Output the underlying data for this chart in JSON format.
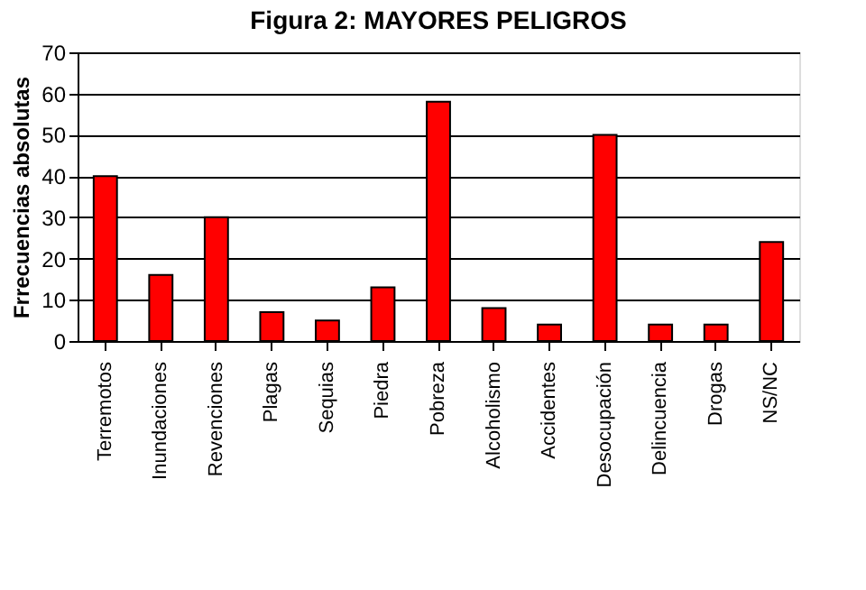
{
  "chart_data": {
    "type": "bar",
    "title": "Figura 2: MAYORES PELIGROS",
    "ylabel": "Frrecuencias absolutas",
    "categories": [
      "Terremotos",
      "Inundaciones",
      "Revenciones",
      "Plagas",
      "Sequias",
      "Piedra",
      "Pobreza",
      "Alcoholismo",
      "Accidentes",
      "Desocupación",
      "Delincuencia",
      "Drogas",
      "NS/NC"
    ],
    "values": [
      40,
      16,
      30,
      7,
      5,
      13,
      58,
      8,
      4,
      50,
      4,
      4,
      24
    ],
    "color": "#ff0000",
    "ylim": [
      0,
      70
    ],
    "yticks": [
      0,
      10,
      20,
      30,
      40,
      50,
      60,
      70
    ],
    "grid": "y"
  }
}
